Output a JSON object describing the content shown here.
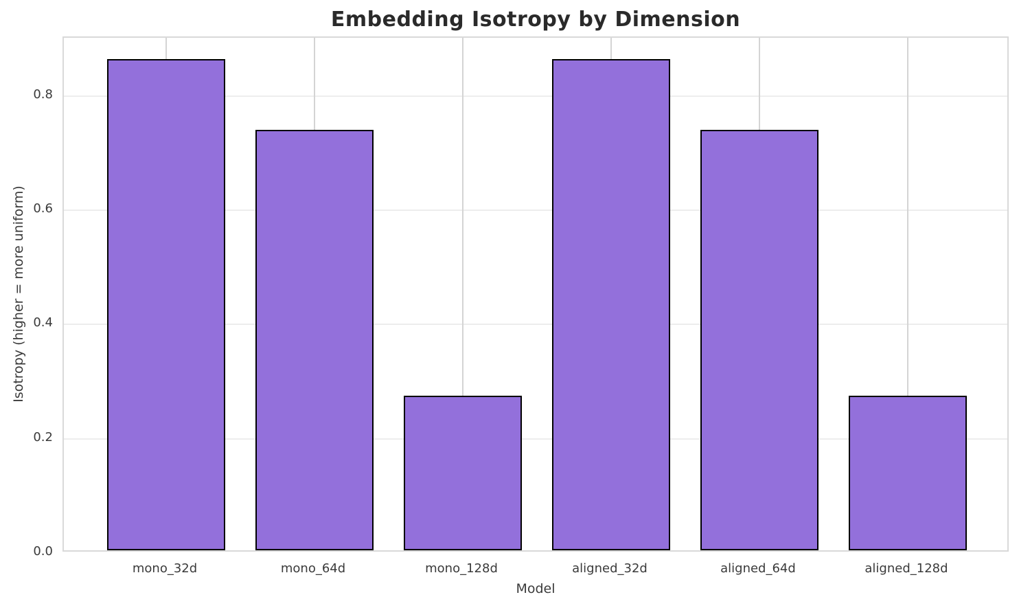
{
  "chart_data": {
    "type": "bar",
    "title": "Embedding Isotropy by Dimension",
    "xlabel": "Model",
    "ylabel": "Isotropy (higher = more uniform)",
    "categories": [
      "mono_32d",
      "mono_64d",
      "mono_128d",
      "aligned_32d",
      "aligned_64d",
      "aligned_128d"
    ],
    "values": [
      0.86,
      0.736,
      0.271,
      0.86,
      0.736,
      0.271
    ],
    "yticks": [
      0.0,
      0.2,
      0.4,
      0.6,
      0.8
    ],
    "ytick_labels": [
      "0.0",
      "0.2",
      "0.4",
      "0.6",
      "0.8"
    ],
    "ylim": [
      0,
      0.902
    ],
    "xlim": [
      -0.69,
      5.69
    ],
    "bar_width": 0.8,
    "grid": "both",
    "legend": "none",
    "colors": {
      "bar_fill": "#9370DB",
      "bar_edge": "#000000",
      "h_grid": "#ededed",
      "v_grid": "#d4d4d4",
      "spine": "#d9d9d9",
      "title_text": "#2a2a2a",
      "axis_text": "#3a3a3a",
      "background": "#ffffff"
    }
  }
}
